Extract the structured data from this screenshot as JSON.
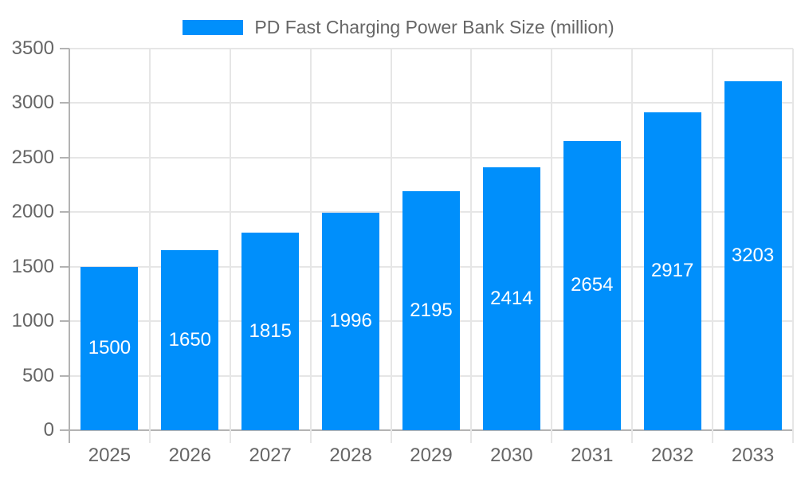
{
  "chart_data": {
    "type": "bar",
    "title": "PD Fast Charging Power Bank Size (million)",
    "legend_entries": [
      "PD Fast Charging Power Bank Size (million)"
    ],
    "legend_position": "top",
    "categories": [
      "2025",
      "2026",
      "2027",
      "2028",
      "2029",
      "2030",
      "2031",
      "2032",
      "2033"
    ],
    "values": [
      1500,
      1650,
      1815,
      1996,
      2195,
      2414,
      2654,
      2917,
      3203
    ],
    "xlabel": "",
    "ylabel": "",
    "ylim": [
      0,
      3500
    ],
    "ytick_step": 500,
    "ytick_labels": [
      "0",
      "500",
      "1000",
      "1500",
      "2000",
      "2500",
      "3000",
      "3500"
    ],
    "grid": true,
    "colors": {
      "bar": "#008FFB",
      "value_label": "#ffffff",
      "axis_label": "#666666",
      "legend_label": "#666666",
      "gridline": "#e6e6e6",
      "axis_line": "#b3b3b3",
      "background": "#ffffff"
    }
  }
}
